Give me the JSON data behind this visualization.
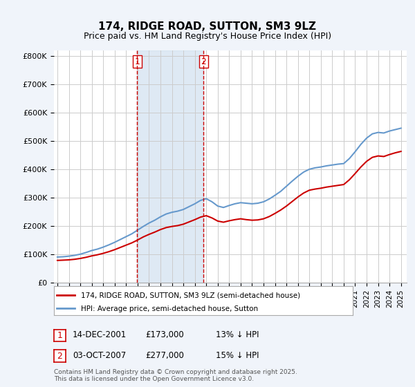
{
  "title": "174, RIDGE ROAD, SUTTON, SM3 9LZ",
  "subtitle": "Price paid vs. HM Land Registry's House Price Index (HPI)",
  "legend_line1": "174, RIDGE ROAD, SUTTON, SM3 9LZ (semi-detached house)",
  "legend_line2": "HPI: Average price, semi-detached house, Sutton",
  "footnote": "Contains HM Land Registry data © Crown copyright and database right 2025.\nThis data is licensed under the Open Government Licence v3.0.",
  "purchase1_date": "14-DEC-2001",
  "purchase1_price": "£173,000",
  "purchase1_hpi": "13% ↓ HPI",
  "purchase2_date": "03-OCT-2007",
  "purchase2_price": "£277,000",
  "purchase2_hpi": "15% ↓ HPI",
  "vline1_x": 2001.96,
  "vline2_x": 2007.75,
  "ylabel_ticks": [
    "£0",
    "£100K",
    "£200K",
    "£300K",
    "£400K",
    "£500K",
    "£600K",
    "£700K",
    "£800K"
  ],
  "ytick_vals": [
    0,
    100000,
    200000,
    300000,
    400000,
    500000,
    600000,
    700000,
    800000
  ],
  "ylim": [
    0,
    820000
  ],
  "xlim_start": 1995,
  "xlim_end": 2025.5,
  "bg_color": "#f0f4fa",
  "plot_bg_color": "#ffffff",
  "red_color": "#cc0000",
  "blue_color": "#6699cc",
  "shade_color": "#d0e0f0"
}
